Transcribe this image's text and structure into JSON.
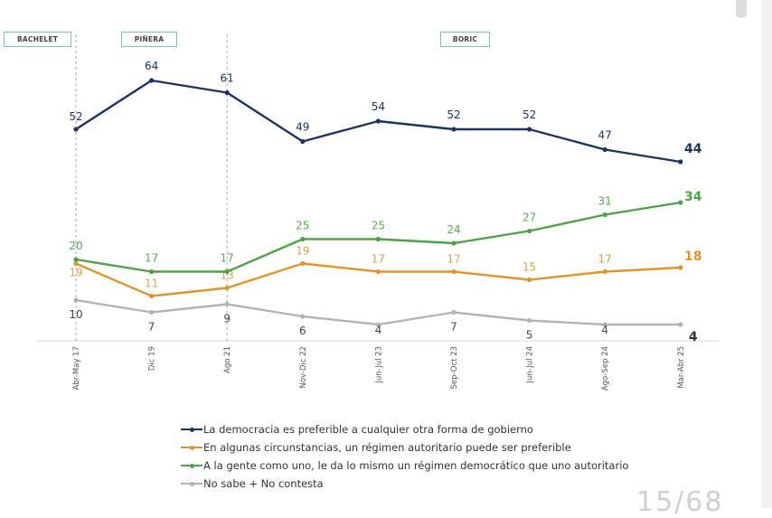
{
  "eras": [
    {
      "label": "BACHELET"
    },
    {
      "label": "PIÑERA"
    },
    {
      "label": "BORIC"
    }
  ],
  "page_indicator": "15/68",
  "chart_data": {
    "type": "line",
    "title": "",
    "xlabel": "",
    "ylabel": "",
    "categories": [
      "Abr-May 17",
      "Dic 19",
      "Ago 21",
      "Nov-Dic 22",
      "Jun-Jul 23",
      "Sep-Oct 23",
      "Jun-Jul 24",
      "Ago-Sep 24",
      "Mar-Abr 25"
    ],
    "era_dividers_after": [
      "Abr-May 17",
      "Ago 21"
    ],
    "legend_position": "bottom",
    "grid": false,
    "series": [
      {
        "name": "La democracia es preferible a cualquier otra forma de gobierno",
        "color": "#1b3563",
        "values": [
          52,
          64,
          61,
          49,
          54,
          52,
          52,
          47,
          44
        ]
      },
      {
        "name": "En algunas circunstancias, un régimen autoritario puede ser preferible",
        "color": "#e0952a",
        "values": [
          19,
          11,
          13,
          19,
          17,
          17,
          15,
          17,
          18
        ]
      },
      {
        "name": "A la gente como uno, le da lo mismo un régimen democrático que uno autoritario",
        "color": "#4ea346",
        "values": [
          20,
          17,
          17,
          25,
          25,
          24,
          27,
          31,
          34
        ]
      },
      {
        "name": "No sabe + No contesta",
        "color": "#b3b3b3",
        "values": [
          10,
          7,
          9,
          6,
          4,
          7,
          5,
          4,
          4
        ]
      }
    ]
  }
}
